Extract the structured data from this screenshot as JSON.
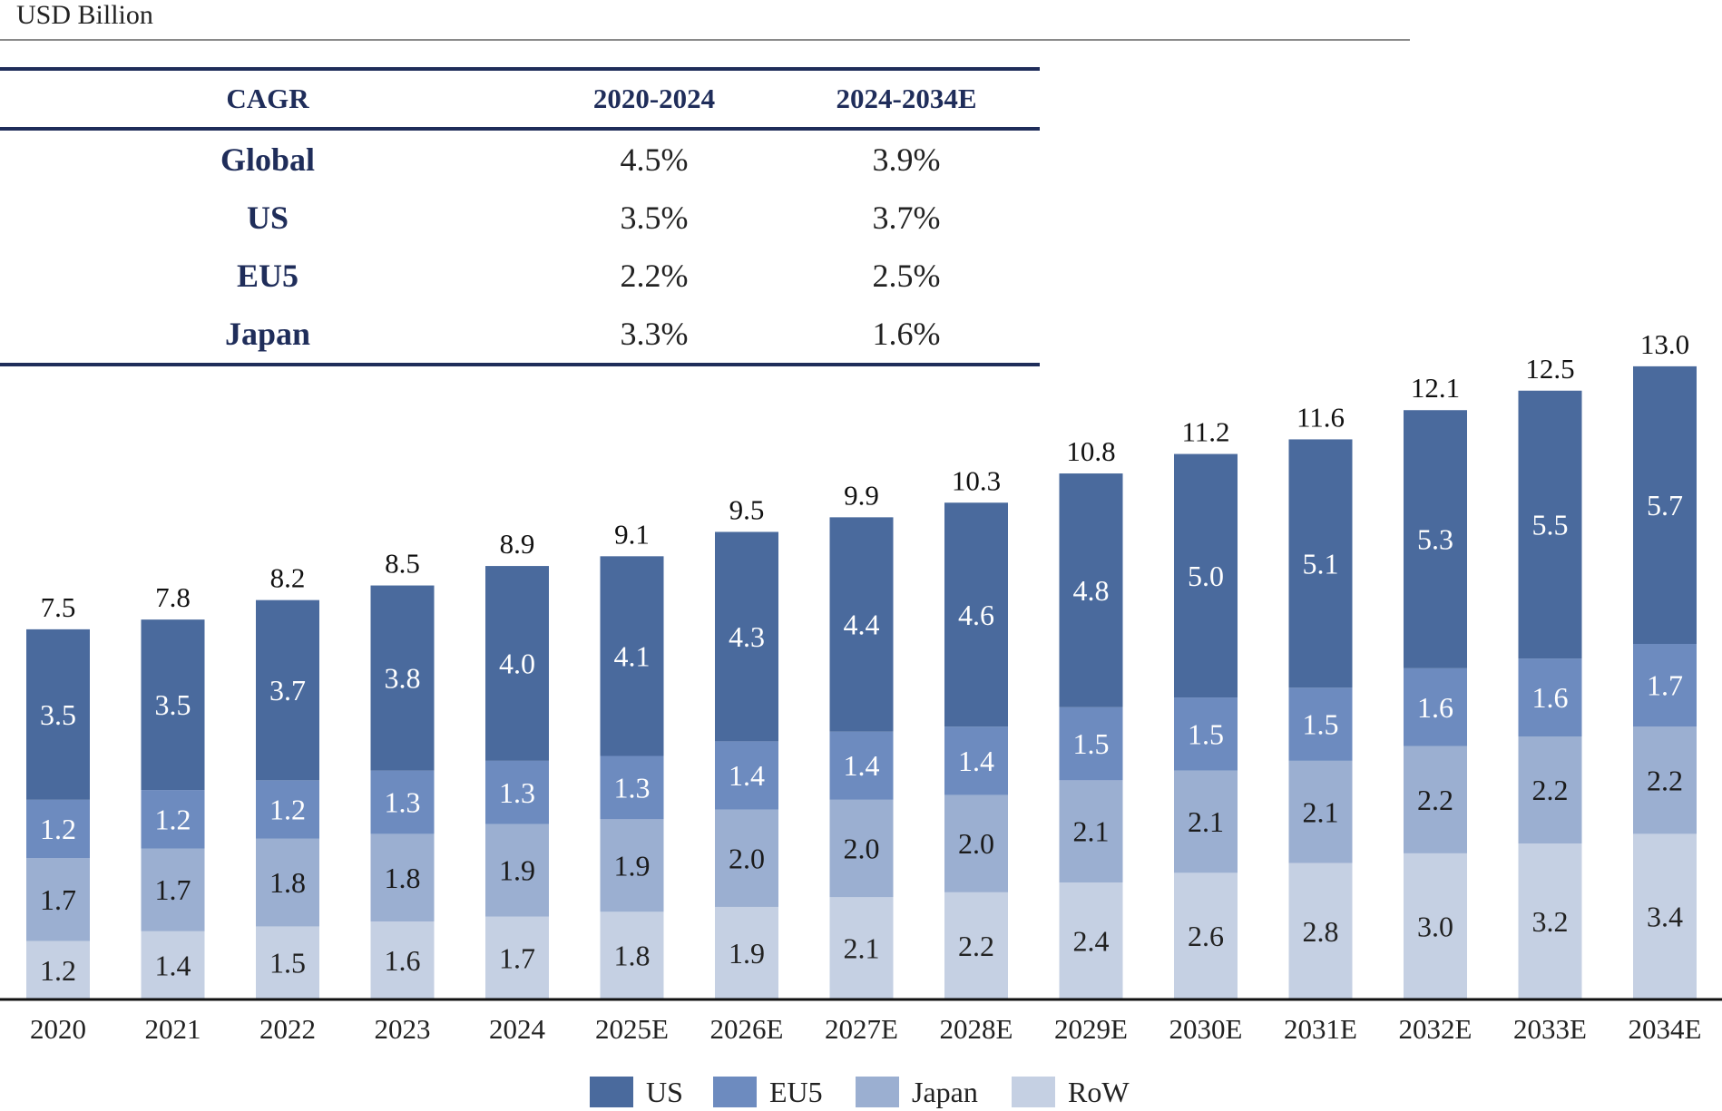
{
  "unit_label": "USD Billion",
  "table": {
    "headers": [
      "CAGR",
      "2020-2024",
      "2024-2034E"
    ],
    "rows": [
      {
        "label": "Global",
        "v1": "4.5%",
        "v2": "3.9%"
      },
      {
        "label": "US",
        "v1": "3.5%",
        "v2": "3.7%"
      },
      {
        "label": "EU5",
        "v1": "2.2%",
        "v2": "2.5%"
      },
      {
        "label": "Japan",
        "v1": "3.3%",
        "v2": "1.6%"
      }
    ]
  },
  "chart_data": {
    "type": "bar",
    "stacked": true,
    "categories": [
      "2020",
      "2021",
      "2022",
      "2023",
      "2024",
      "2025E",
      "2026E",
      "2027E",
      "2028E",
      "2029E",
      "2030E",
      "2031E",
      "2032E",
      "2033E",
      "2034E"
    ],
    "series": [
      {
        "name": "RoW",
        "color": "#c5d0e3",
        "label_color": "#222222",
        "values": [
          1.2,
          1.4,
          1.5,
          1.6,
          1.7,
          1.8,
          1.9,
          2.1,
          2.2,
          2.4,
          2.6,
          2.8,
          3.0,
          3.2,
          3.4
        ]
      },
      {
        "name": "Japan",
        "color": "#9bafd1",
        "label_color": "#1a1a1a",
        "values": [
          1.7,
          1.7,
          1.8,
          1.8,
          1.9,
          1.9,
          2.0,
          2.0,
          2.0,
          2.1,
          2.1,
          2.1,
          2.2,
          2.2,
          2.2
        ]
      },
      {
        "name": "EU5",
        "color": "#6d8bbf",
        "label_color": "#ffffff",
        "values": [
          1.2,
          1.2,
          1.2,
          1.3,
          1.3,
          1.3,
          1.4,
          1.4,
          1.4,
          1.5,
          1.5,
          1.5,
          1.6,
          1.6,
          1.7
        ]
      },
      {
        "name": "US",
        "color": "#4a6a9d",
        "label_color": "#ffffff",
        "values": [
          3.5,
          3.5,
          3.7,
          3.8,
          4.0,
          4.1,
          4.3,
          4.4,
          4.6,
          4.8,
          5.0,
          5.1,
          5.3,
          5.5,
          5.7
        ]
      }
    ],
    "totals": [
      "7.5",
      "7.8",
      "8.2",
      "8.5",
      "8.9",
      "9.1",
      "9.5",
      "9.9",
      "10.3",
      "10.8",
      "11.2",
      "11.6",
      "12.1",
      "12.5",
      "13.0"
    ],
    "legend_order": [
      "US",
      "EU5",
      "Japan",
      "RoW"
    ],
    "legend_position": "bottom-center",
    "ylim": [
      0,
      13.0
    ],
    "grid": false
  }
}
